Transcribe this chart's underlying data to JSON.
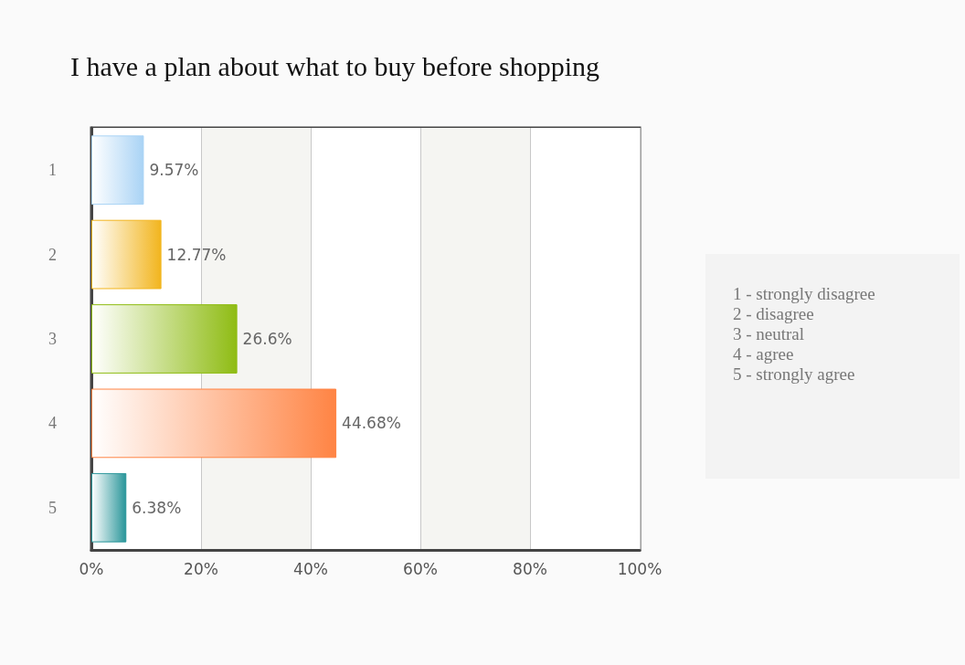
{
  "chart_data": {
    "type": "bar",
    "orientation": "horizontal",
    "title": "I have a plan about what to buy before shopping",
    "categories": [
      "1",
      "2",
      "3",
      "4",
      "5"
    ],
    "values": [
      9.57,
      12.77,
      26.6,
      44.68,
      6.38
    ],
    "value_labels": [
      "9.57%",
      "12.77%",
      "26.6%",
      "44.68%",
      "6.38%"
    ],
    "colors": [
      "#a9d3f5",
      "#f2b51e",
      "#8fbc14",
      "#ff8444",
      "#2a969a"
    ],
    "xlim": [
      0,
      100
    ],
    "xticks": [
      {
        "value": 0,
        "label": "0%"
      },
      {
        "value": 20,
        "label": "20%"
      },
      {
        "value": 40,
        "label": "40%"
      },
      {
        "value": 60,
        "label": "60%"
      },
      {
        "value": 80,
        "label": "80%"
      },
      {
        "value": 100,
        "label": "100%"
      }
    ],
    "grid": "x",
    "annotations": [
      "1 - strongly disagree",
      "2 - disagree",
      "3 - neutral",
      "4 - agree",
      "5 - strongly agree"
    ]
  }
}
